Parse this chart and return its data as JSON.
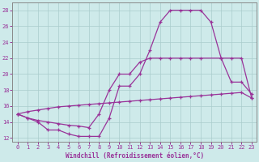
{
  "xlabel": "Windchill (Refroidissement éolien,°C)",
  "bg_color": "#ceeaea",
  "line_color": "#993399",
  "grid_color": "#aacccc",
  "xlim": [
    -0.5,
    23.5
  ],
  "ylim": [
    11.5,
    29.0
  ],
  "yticks": [
    12,
    14,
    16,
    18,
    20,
    22,
    24,
    26,
    28
  ],
  "xticks": [
    0,
    1,
    2,
    3,
    4,
    5,
    6,
    7,
    8,
    9,
    10,
    11,
    12,
    13,
    14,
    15,
    16,
    17,
    18,
    19,
    20,
    21,
    22,
    23
  ],
  "curve1_x": [
    0,
    1,
    2,
    3,
    4,
    5,
    6,
    7,
    8,
    9,
    10,
    11,
    12,
    13,
    14,
    15,
    16,
    17,
    18,
    19,
    20,
    21,
    22,
    23
  ],
  "curve1_y": [
    15,
    14.5,
    14,
    13,
    13,
    12.5,
    12.2,
    12.2,
    12.2,
    14.5,
    18.5,
    18.5,
    20,
    23,
    26.5,
    28,
    28,
    28,
    28,
    26.5,
    22,
    19,
    19,
    17.5
  ],
  "curve2_x": [
    0,
    1,
    2,
    3,
    4,
    5,
    6,
    7,
    8,
    9,
    10,
    11,
    12,
    13,
    14,
    15,
    16,
    17,
    18,
    20,
    21,
    22,
    23
  ],
  "curve2_y": [
    15,
    14.5,
    14.2,
    14,
    13.8,
    13.6,
    13.5,
    13.3,
    15,
    18,
    20,
    20,
    21.5,
    22,
    22,
    22,
    22,
    22,
    22,
    22,
    22,
    22,
    17
  ],
  "curve3_x": [
    0,
    1,
    2,
    3,
    4,
    5,
    6,
    7,
    8,
    9,
    10,
    11,
    12,
    13,
    14,
    15,
    16,
    17,
    18,
    19,
    20,
    21,
    22,
    23
  ],
  "curve3_y": [
    15.0,
    15.3,
    15.5,
    15.7,
    15.9,
    16.0,
    16.1,
    16.2,
    16.3,
    16.4,
    16.5,
    16.6,
    16.7,
    16.8,
    16.9,
    17.0,
    17.1,
    17.2,
    17.3,
    17.4,
    17.5,
    17.6,
    17.7,
    17.0
  ]
}
